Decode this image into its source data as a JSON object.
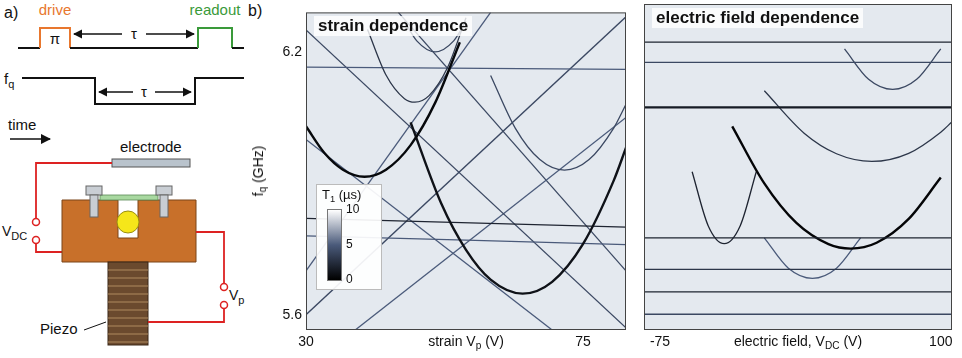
{
  "diagram": {
    "letter": "a)",
    "drive": "drive",
    "readout": "readout",
    "pulse": "π",
    "delay": "τ",
    "frequency": [
      {
        "text": "f"
      },
      {
        "text": "q",
        "sub": true
      }
    ],
    "time": "time",
    "electrode": "electrode",
    "dc_voltage": [
      {
        "text": "V"
      },
      {
        "text": "DC",
        "sub": true
      }
    ],
    "piezo_voltage": [
      {
        "text": "V"
      },
      {
        "text": "p",
        "sub": true
      }
    ],
    "piezo": "Piezo"
  },
  "panel_letter": "b)",
  "chart_data": [
    {
      "type": "line",
      "title": "strain dependence",
      "x_label": [
        {
          "text": "strain V"
        },
        {
          "text": "p",
          "sub": true
        },
        {
          "text": " (V)"
        }
      ],
      "y_label": [
        {
          "text": "f"
        },
        {
          "text": "q",
          "sub": true
        },
        {
          "text": " (GHz)"
        }
      ],
      "xlim": [
        30,
        82
      ],
      "xticks": [
        30,
        75
      ],
      "ylim": [
        5.565,
        6.29
      ],
      "yticks": [
        5.6,
        6.2
      ],
      "grid": false,
      "tick_labels": true,
      "colorbar": {
        "label": [
          {
            "text": "T"
          },
          {
            "text": "1",
            "sub": true
          },
          {
            "text": " (µs)"
          }
        ],
        "range": [
          0,
          10
        ],
        "ticks": [
          0,
          5,
          10
        ]
      },
      "series": [
        {
          "t1": 0.5,
          "x": [
            30,
            33,
            36,
            39.5,
            43,
            47,
            51,
            55
          ],
          "values": [
            6.03,
            5.969,
            5.931,
            5.915,
            5.931,
            5.987,
            6.084,
            6.222
          ]
        },
        {
          "t1": 1,
          "x": [
            47,
            52,
            56,
            60,
            65.2,
            70,
            75,
            80,
            82
          ],
          "values": [
            6.039,
            5.853,
            5.748,
            5.68,
            5.648,
            5.675,
            5.761,
            5.906,
            5.981
          ]
        },
        {
          "t1": 3,
          "x": [
            40,
            43,
            46,
            47.7,
            50,
            53,
            56
          ],
          "values": [
            6.251,
            6.147,
            6.093,
            6.085,
            6.1,
            6.164,
            6.278
          ]
        },
        {
          "t1": 4,
          "x": [
            60,
            64,
            68,
            72,
            76,
            80,
            82
          ],
          "values": [
            6.146,
            6.026,
            5.954,
            5.93,
            5.954,
            6.026,
            6.08
          ]
        },
        {
          "t1": 4,
          "x": [
            46,
            48,
            51,
            54,
            56
          ],
          "values": [
            6.27,
            6.225,
            6.2,
            6.225,
            6.27
          ]
        },
        {
          "t1": 5,
          "x": [
            30,
            82
          ],
          "values": [
            6.165,
            6.16
          ]
        },
        {
          "t1": 2,
          "x": [
            30,
            82
          ],
          "values": [
            5.82,
            5.8
          ]
        },
        {
          "t1": 5,
          "x": [
            30,
            82
          ],
          "values": [
            5.78,
            5.76
          ]
        },
        {
          "t1": 4,
          "x": [
            30,
            82
          ],
          "values": [
            5.6,
            6.28
          ]
        },
        {
          "t1": 4,
          "x": [
            30,
            82
          ],
          "values": [
            6.25,
            5.57
          ]
        },
        {
          "t1": 5,
          "x": [
            38,
            82
          ],
          "values": [
            5.565,
            6.05
          ]
        },
        {
          "t1": 5,
          "x": [
            30,
            70
          ],
          "values": [
            6.0,
            5.565
          ]
        },
        {
          "t1": 4,
          "x": [
            45,
            82
          ],
          "values": [
            6.29,
            5.7
          ]
        },
        {
          "t1": 5,
          "x": [
            30,
            60
          ],
          "values": [
            5.7,
            6.29
          ]
        }
      ]
    },
    {
      "type": "line",
      "title": "electric field dependence",
      "x_label": [
        {
          "text": "electric field, V"
        },
        {
          "text": "DC",
          "sub": true
        },
        {
          "text": " (V)"
        }
      ],
      "xlim": [
        -85,
        107
      ],
      "xticks": [
        -75,
        100
      ],
      "ylim": [
        5.565,
        6.29
      ],
      "grid": false,
      "tick_labels": "x",
      "series": [
        {
          "t1": 2,
          "x": [
            -85,
            107
          ],
          "values": [
            6.205,
            6.205
          ]
        },
        {
          "t1": 4,
          "x": [
            -85,
            107
          ],
          "values": [
            6.16,
            6.16
          ]
        },
        {
          "t1": 1.5,
          "x": [
            -85,
            107
          ],
          "values": [
            6.06,
            6.06
          ]
        },
        {
          "t1": 2,
          "x": [
            -85,
            107
          ],
          "values": [
            5.77,
            5.77
          ]
        },
        {
          "t1": 3,
          "x": [
            -85,
            107
          ],
          "values": [
            5.7,
            5.7
          ]
        },
        {
          "t1": 2,
          "x": [
            -85,
            107
          ],
          "values": [
            5.65,
            5.65
          ]
        },
        {
          "t1": 4,
          "x": [
            -85,
            107
          ],
          "values": [
            5.6,
            5.6
          ]
        },
        {
          "t1": 0.3,
          "x": [
            -30,
            -10,
            10,
            30,
            43.8,
            60,
            80,
            100
          ],
          "values": [
            6.018,
            5.891,
            5.803,
            5.756,
            5.746,
            5.759,
            5.812,
            5.904
          ]
        },
        {
          "t1": 3,
          "x": [
            -10,
            15,
            35,
            57,
            80,
            100,
            107
          ],
          "values": [
            6.097,
            6.002,
            5.957,
            5.94,
            5.958,
            6.005,
            6.028
          ]
        },
        {
          "t1": 2,
          "x": [
            -55,
            -45,
            -35,
            -25,
            -15
          ],
          "values": [
            5.917,
            5.797,
            5.757,
            5.797,
            5.917
          ]
        },
        {
          "t1": 4,
          "x": [
            40,
            55,
            70,
            85,
            100
          ],
          "values": [
            6.19,
            6.1225,
            6.1,
            6.1225,
            6.19
          ]
        },
        {
          "t1": 5,
          "x": [
            -10,
            5,
            20,
            35,
            50
          ],
          "values": [
            5.77,
            5.7025,
            5.68,
            5.7025,
            5.77
          ]
        }
      ]
    }
  ]
}
